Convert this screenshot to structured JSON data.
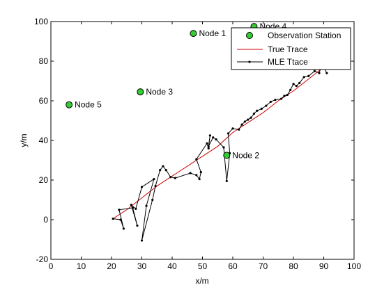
{
  "chart_data": {
    "type": "line",
    "title": "",
    "xlabel": "x/m",
    "ylabel": "y/m",
    "xlim": [
      0,
      100
    ],
    "ylim": [
      -20,
      100
    ],
    "x_ticks": [
      0,
      10,
      20,
      30,
      40,
      50,
      60,
      70,
      80,
      90,
      100
    ],
    "y_ticks": [
      -20,
      0,
      20,
      40,
      60,
      80,
      100
    ],
    "grid": false,
    "legend_position": "top-right",
    "legend": [
      "Observation Station",
      "True Trace",
      "MLE Ttace"
    ],
    "stations": [
      {
        "label": "Node 1",
        "x": 47,
        "y": 94
      },
      {
        "label": "Node 2",
        "x": 58,
        "y": 32.5
      },
      {
        "label": "Node 3",
        "x": 29.5,
        "y": 64.5
      },
      {
        "label": "Node 4",
        "x": 67,
        "y": 97.5
      },
      {
        "label": "Node 5",
        "x": 6,
        "y": 58
      }
    ],
    "true_trace": {
      "name": "True Trace",
      "color": "#cc0000",
      "x": [
        20.5,
        25,
        30,
        35,
        40,
        45,
        50,
        55,
        60,
        65,
        70,
        75,
        80,
        85,
        90,
        95
      ],
      "y": [
        0.5,
        5,
        11,
        17,
        22,
        27,
        32,
        37,
        44,
        49,
        54,
        60,
        65,
        71,
        77,
        85
      ]
    },
    "mle_trace": {
      "name": "MLE Ttace",
      "color": "#000000",
      "x": [
        20.5,
        23,
        24,
        22.5,
        27,
        28.5,
        26.5,
        28,
        30,
        34,
        31.5,
        30,
        33.5,
        34.5,
        36,
        37,
        38,
        39.5,
        41,
        46,
        48,
        49,
        49.5,
        48,
        51.5,
        52,
        52.5,
        52,
        53.5,
        54.5,
        57,
        58,
        59,
        58.5,
        60,
        62,
        63,
        64,
        65,
        66,
        67,
        68,
        69.5,
        71,
        72.5,
        74,
        76,
        77,
        78,
        79,
        80,
        81,
        82,
        83.5,
        85,
        87,
        88.5,
        89,
        90,
        91
      ],
      "y": [
        0.5,
        0,
        -4.5,
        5,
        6,
        -3,
        7.5,
        5.5,
        16.5,
        20.5,
        7,
        -10.5,
        10,
        17,
        25,
        27,
        25,
        21.5,
        21,
        23.5,
        22.5,
        20.5,
        24,
        30.5,
        38.5,
        36,
        42.5,
        37,
        41.5,
        40.5,
        36.5,
        19.5,
        33.5,
        43.5,
        46,
        45.5,
        48,
        49.5,
        50.5,
        51.5,
        53.5,
        55,
        56,
        57.5,
        59.5,
        60.5,
        61,
        62.5,
        63,
        65.5,
        68.5,
        67.5,
        69,
        72,
        72.5,
        75,
        74,
        76.5,
        77,
        74
      ]
    }
  }
}
